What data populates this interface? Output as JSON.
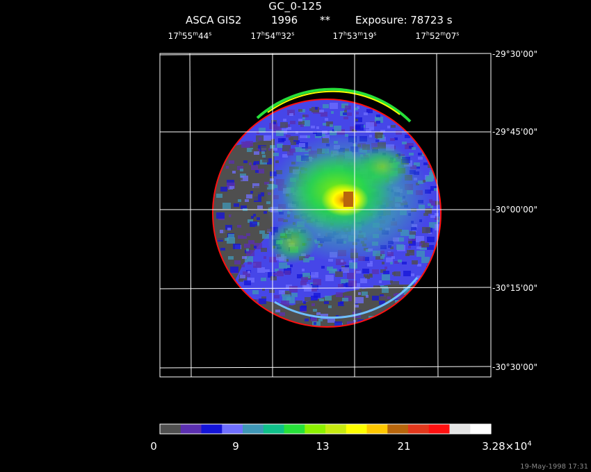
{
  "header": {
    "title": "GC_0-125",
    "instrument": "ASCA GIS2",
    "year": "1996",
    "marker": "**",
    "exposure": "Exposure: 78723 s"
  },
  "axes": {
    "ra_ticks": [
      {
        "h": "17",
        "m": "55",
        "s": "44"
      },
      {
        "h": "17",
        "m": "54",
        "s": "32"
      },
      {
        "h": "17",
        "m": "53",
        "s": "19"
      },
      {
        "h": "17",
        "m": "52",
        "s": "07"
      }
    ],
    "dec_ticks": [
      "-29°30'00\"",
      "-29°45'00\"",
      "-30°00'00\"",
      "-30°15'00\"",
      "-30°30'00\""
    ]
  },
  "colorbar": {
    "colors": [
      "#4f4f4f",
      "#5b2fb0",
      "#1414d8",
      "#6f6fff",
      "#3f97b7",
      "#10c08a",
      "#27e03a",
      "#8cf000",
      "#c7ea10",
      "#ffff00",
      "#ffc800",
      "#b8660c",
      "#e2381c",
      "#ff1010",
      "#e4e4e4",
      "#ffffff"
    ],
    "labels": [
      {
        "text": "0"
      },
      {
        "text": "9"
      },
      {
        "text": "13"
      },
      {
        "text": "21"
      },
      {
        "text": "3.28×10",
        "exp": "4"
      }
    ]
  },
  "footer": {
    "timestamp": "19-May-1998 17:31"
  }
}
